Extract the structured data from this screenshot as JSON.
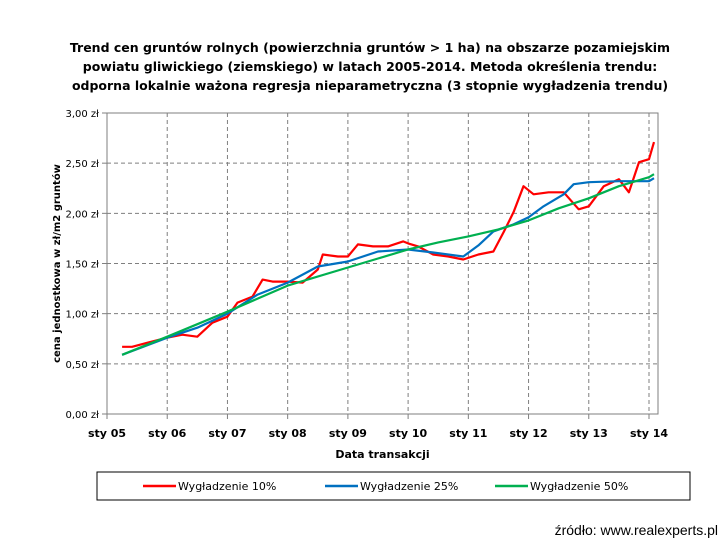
{
  "chart_data": {
    "type": "line",
    "title": "Trend cen gruntów rolnych (powierzchnia gruntów > 1 ha) na obszarze pozamiejskim powiatu gliwickiego (ziemskiego) w latach 2005-2014.  Metoda określenia trendu: odporna lokalnie ważona regresja nieparametryczna (3 stopnie wygładzenia trendu)",
    "title_lines": [
      "Trend cen gruntów rolnych (powierzchnia gruntów > 1 ha) na obszarze pozamiejskim",
      "powiatu gliwickiego (ziemskiego) w latach 2005-2014.  Metoda określenia trendu:",
      "odporna lokalnie ważona regresja nieparametryczna (3 stopnie wygładzenia trendu)"
    ],
    "xlabel": "Data transakcji",
    "ylabel": "cena jednostkowa w zł/m2 gruntów",
    "xlim": [
      "2005-01",
      "2014-03"
    ],
    "ylim": [
      0,
      3
    ],
    "x_ticks": [
      {
        "date": "2005-01",
        "label": "sty 05"
      },
      {
        "date": "2006-01",
        "label": "sty 06"
      },
      {
        "date": "2007-01",
        "label": "sty 07"
      },
      {
        "date": "2008-01",
        "label": "sty 08"
      },
      {
        "date": "2009-01",
        "label": "sty 09"
      },
      {
        "date": "2010-01",
        "label": "sty 10"
      },
      {
        "date": "2011-01",
        "label": "sty 11"
      },
      {
        "date": "2012-01",
        "label": "sty 12"
      },
      {
        "date": "2013-01",
        "label": "sty 13"
      },
      {
        "date": "2014-01",
        "label": "sty 14"
      }
    ],
    "y_ticks": [
      {
        "value": 0,
        "label": "0,00 zł"
      },
      {
        "value": 0.5,
        "label": "0,50 zł"
      },
      {
        "value": 1,
        "label": "1,00 zł"
      },
      {
        "value": 1.5,
        "label": "1,50 zł"
      },
      {
        "value": 2,
        "label": "2,00 zł"
      },
      {
        "value": 2.5,
        "label": "2,50 zł"
      },
      {
        "value": 3,
        "label": "3,00 zł"
      }
    ],
    "grid": true,
    "legend_position": "bottom",
    "series": [
      {
        "name": "Wygładzenie 10%",
        "color": "#ff0000",
        "points": [
          [
            "2005-04",
            0.67
          ],
          [
            "2005-06",
            0.67
          ],
          [
            "2005-09",
            0.71
          ],
          [
            "2006-01",
            0.76
          ],
          [
            "2006-04",
            0.79
          ],
          [
            "2006-07",
            0.77
          ],
          [
            "2006-10",
            0.91
          ],
          [
            "2007-01",
            0.97
          ],
          [
            "2007-03",
            1.11
          ],
          [
            "2007-06",
            1.17
          ],
          [
            "2007-08",
            1.34
          ],
          [
            "2007-10",
            1.32
          ],
          [
            "2008-01",
            1.32
          ],
          [
            "2008-04",
            1.31
          ],
          [
            "2008-07",
            1.44
          ],
          [
            "2008-08",
            1.59
          ],
          [
            "2008-11",
            1.57
          ],
          [
            "2009-01",
            1.57
          ],
          [
            "2009-03",
            1.69
          ],
          [
            "2009-06",
            1.67
          ],
          [
            "2009-09",
            1.67
          ],
          [
            "2009-12",
            1.72
          ],
          [
            "2010-01",
            1.7
          ],
          [
            "2010-03",
            1.67
          ],
          [
            "2010-06",
            1.59
          ],
          [
            "2010-09",
            1.57
          ],
          [
            "2010-12",
            1.54
          ],
          [
            "2011-03",
            1.59
          ],
          [
            "2011-06",
            1.62
          ],
          [
            "2011-08",
            1.81
          ],
          [
            "2011-10",
            2.01
          ],
          [
            "2011-12",
            2.27
          ],
          [
            "2012-02",
            2.19
          ],
          [
            "2012-05",
            2.21
          ],
          [
            "2012-08",
            2.21
          ],
          [
            "2012-11",
            2.04
          ],
          [
            "2013-01",
            2.07
          ],
          [
            "2013-04",
            2.27
          ],
          [
            "2013-07",
            2.34
          ],
          [
            "2013-09",
            2.21
          ],
          [
            "2013-11",
            2.51
          ],
          [
            "2014-01",
            2.54
          ],
          [
            "2014-02",
            2.71
          ]
        ]
      },
      {
        "name": "Wygładzenie 25%",
        "color": "#0070c0",
        "points": [
          [
            "2005-04",
            0.59
          ],
          [
            "2006-01",
            0.76
          ],
          [
            "2006-07",
            0.86
          ],
          [
            "2007-01",
            1.0
          ],
          [
            "2007-07",
            1.19
          ],
          [
            "2008-01",
            1.31
          ],
          [
            "2008-07",
            1.47
          ],
          [
            "2009-01",
            1.52
          ],
          [
            "2009-07",
            1.62
          ],
          [
            "2010-01",
            1.64
          ],
          [
            "2010-06",
            1.61
          ],
          [
            "2010-12",
            1.57
          ],
          [
            "2011-03",
            1.68
          ],
          [
            "2011-06",
            1.82
          ],
          [
            "2011-10",
            1.89
          ],
          [
            "2012-01",
            1.96
          ],
          [
            "2012-04",
            2.07
          ],
          [
            "2012-08",
            2.19
          ],
          [
            "2012-10",
            2.29
          ],
          [
            "2013-01",
            2.31
          ],
          [
            "2013-07",
            2.32
          ],
          [
            "2014-01",
            2.32
          ],
          [
            "2014-02",
            2.35
          ]
        ]
      },
      {
        "name": "Wygładzenie 50%",
        "color": "#00b050",
        "points": [
          [
            "2005-04",
            0.59
          ],
          [
            "2006-01",
            0.77
          ],
          [
            "2007-01",
            1.02
          ],
          [
            "2008-01",
            1.28
          ],
          [
            "2009-01",
            1.46
          ],
          [
            "2009-07",
            1.55
          ],
          [
            "2010-01",
            1.64
          ],
          [
            "2010-07",
            1.71
          ],
          [
            "2011-01",
            1.77
          ],
          [
            "2011-07",
            1.84
          ],
          [
            "2012-01",
            1.93
          ],
          [
            "2012-07",
            2.05
          ],
          [
            "2013-01",
            2.15
          ],
          [
            "2013-07",
            2.27
          ],
          [
            "2014-01",
            2.36
          ],
          [
            "2014-02",
            2.39
          ]
        ]
      }
    ]
  },
  "source": "źródło: www.realexperts.pl"
}
